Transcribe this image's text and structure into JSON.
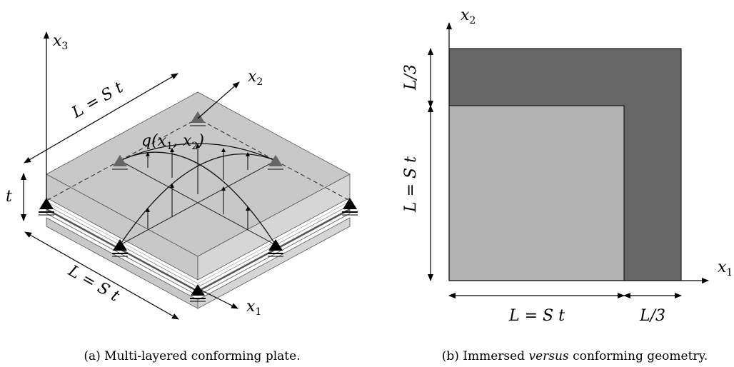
{
  "panel_a": {
    "caption": "(a) Multi-layered conforming plate.",
    "axis_x1": "x",
    "axis_x1_sub": "1",
    "axis_x2": "x",
    "axis_x2_sub": "2",
    "axis_x3": "x",
    "axis_x3_sub": "3",
    "dim_top": "L = S t",
    "dim_bottom": "L = S t",
    "dim_thickness": "t",
    "load_label": "q(x",
    "load_sub1": "1",
    "load_mid": ", x",
    "load_sub2": "2",
    "load_end": ")"
  },
  "panel_b": {
    "caption_prefix": "(b) Immersed ",
    "caption_emph": "versus",
    "caption_suffix": " conforming geometry.",
    "axis_x1": "x",
    "axis_x1_sub": "1",
    "axis_x2": "x",
    "axis_x2_sub": "2",
    "dim_L3_vertical": "L/3",
    "dim_L_vertical": "L = S t",
    "dim_L_horizontal": "L = S t",
    "dim_L3_horizontal": "L/3",
    "colors": {
      "outer_square": "#666666",
      "inner_square": "#b2b2b2"
    }
  }
}
